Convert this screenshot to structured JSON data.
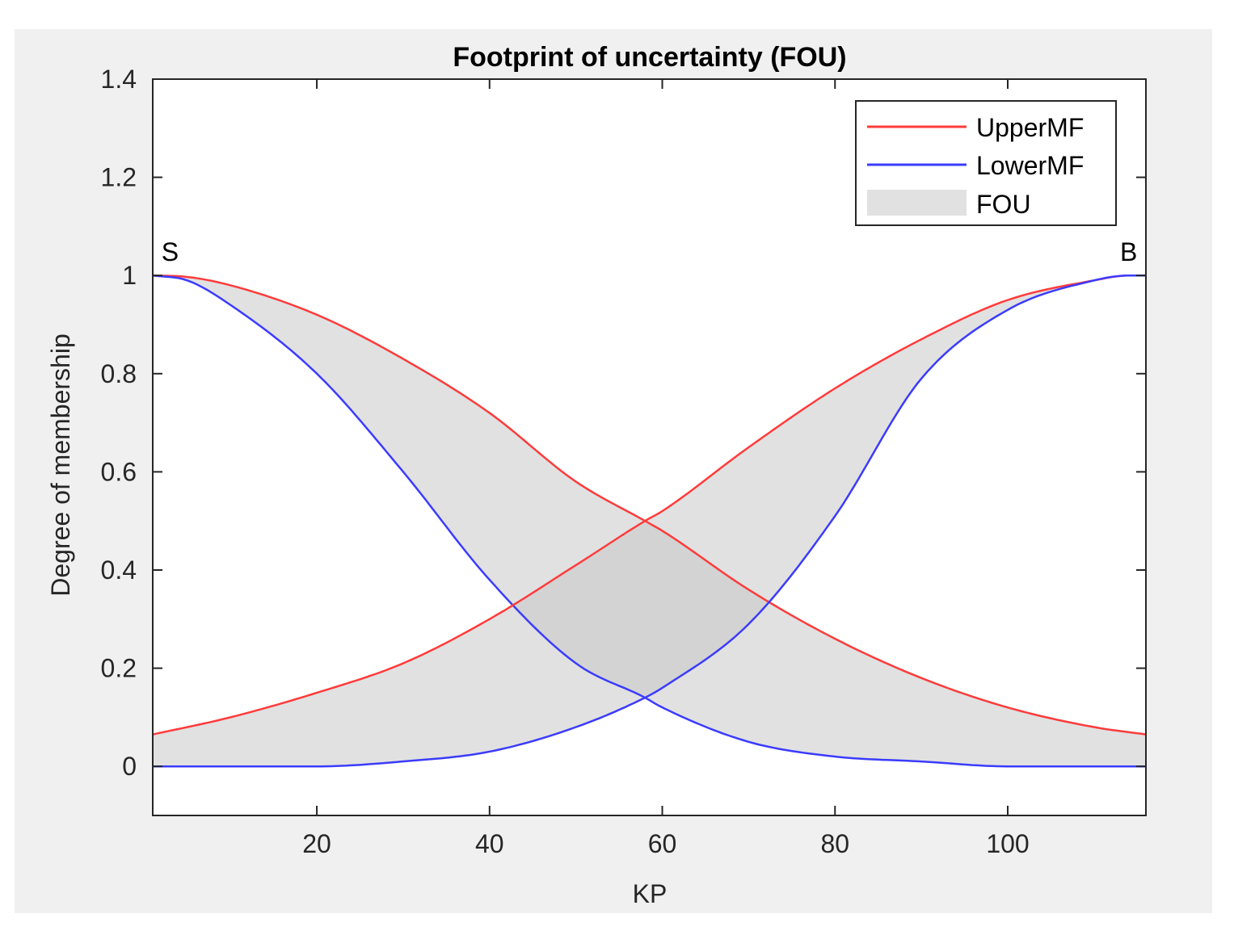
{
  "chart_data": {
    "type": "area",
    "title": "Footprint of uncertainty (FOU)",
    "xlabel": "KP",
    "ylabel": "Degree of membership",
    "xlim": [
      1,
      116
    ],
    "ylim": [
      -0.1,
      1.4
    ],
    "xticks": [
      20,
      40,
      60,
      80,
      100
    ],
    "yticks": [
      0,
      0.2,
      0.4,
      0.6,
      0.8,
      1,
      1.2,
      1.4
    ],
    "grid": false,
    "legend": {
      "position": "top-right",
      "entries": [
        "UpperMF",
        "LowerMF",
        "FOU"
      ]
    },
    "annotations": [
      {
        "text": "S",
        "x": 3,
        "y": 1.03
      },
      {
        "text": "B",
        "x": 114,
        "y": 1.03
      }
    ],
    "series": [
      {
        "name": "UpperMF",
        "color": "#ff3b3b",
        "mf": "S",
        "x": [
          1,
          5,
          10,
          20,
          30,
          40,
          50,
          58,
          60,
          70,
          80,
          90,
          100,
          110,
          116
        ],
        "y": [
          1.0,
          0.997,
          0.98,
          0.92,
          0.83,
          0.72,
          0.58,
          0.5,
          0.48,
          0.36,
          0.26,
          0.18,
          0.12,
          0.08,
          0.065
        ]
      },
      {
        "name": "LowerMF",
        "color": "#3b3bff",
        "mf": "S",
        "x": [
          1,
          5,
          10,
          20,
          30,
          40,
          50,
          58,
          60,
          70,
          80,
          90,
          100,
          110,
          116
        ],
        "y": [
          1.0,
          0.99,
          0.94,
          0.8,
          0.6,
          0.38,
          0.21,
          0.14,
          0.12,
          0.05,
          0.02,
          0.01,
          0.0,
          0.0,
          0.0
        ]
      },
      {
        "name": "UpperMF",
        "color": "#ff3b3b",
        "mf": "B",
        "x": [
          1,
          10,
          20,
          30,
          40,
          50,
          58,
          60,
          70,
          80,
          90,
          100,
          110,
          114,
          116
        ],
        "y": [
          0.065,
          0.1,
          0.15,
          0.21,
          0.3,
          0.41,
          0.5,
          0.52,
          0.65,
          0.77,
          0.87,
          0.95,
          0.99,
          1.0,
          1.0
        ]
      },
      {
        "name": "LowerMF",
        "color": "#3b3bff",
        "mf": "B",
        "x": [
          1,
          10,
          20,
          30,
          40,
          50,
          58,
          60,
          70,
          80,
          90,
          100,
          110,
          114,
          116
        ],
        "y": [
          0.0,
          0.0,
          0.0,
          0.01,
          0.03,
          0.08,
          0.14,
          0.16,
          0.29,
          0.51,
          0.79,
          0.93,
          0.99,
          1.0,
          1.0
        ]
      }
    ],
    "colors": {
      "upper": "#ff3b3b",
      "lower": "#3b3bff",
      "fou_fill": "#c8c8c8",
      "axes_bg": "#ffffff"
    }
  }
}
